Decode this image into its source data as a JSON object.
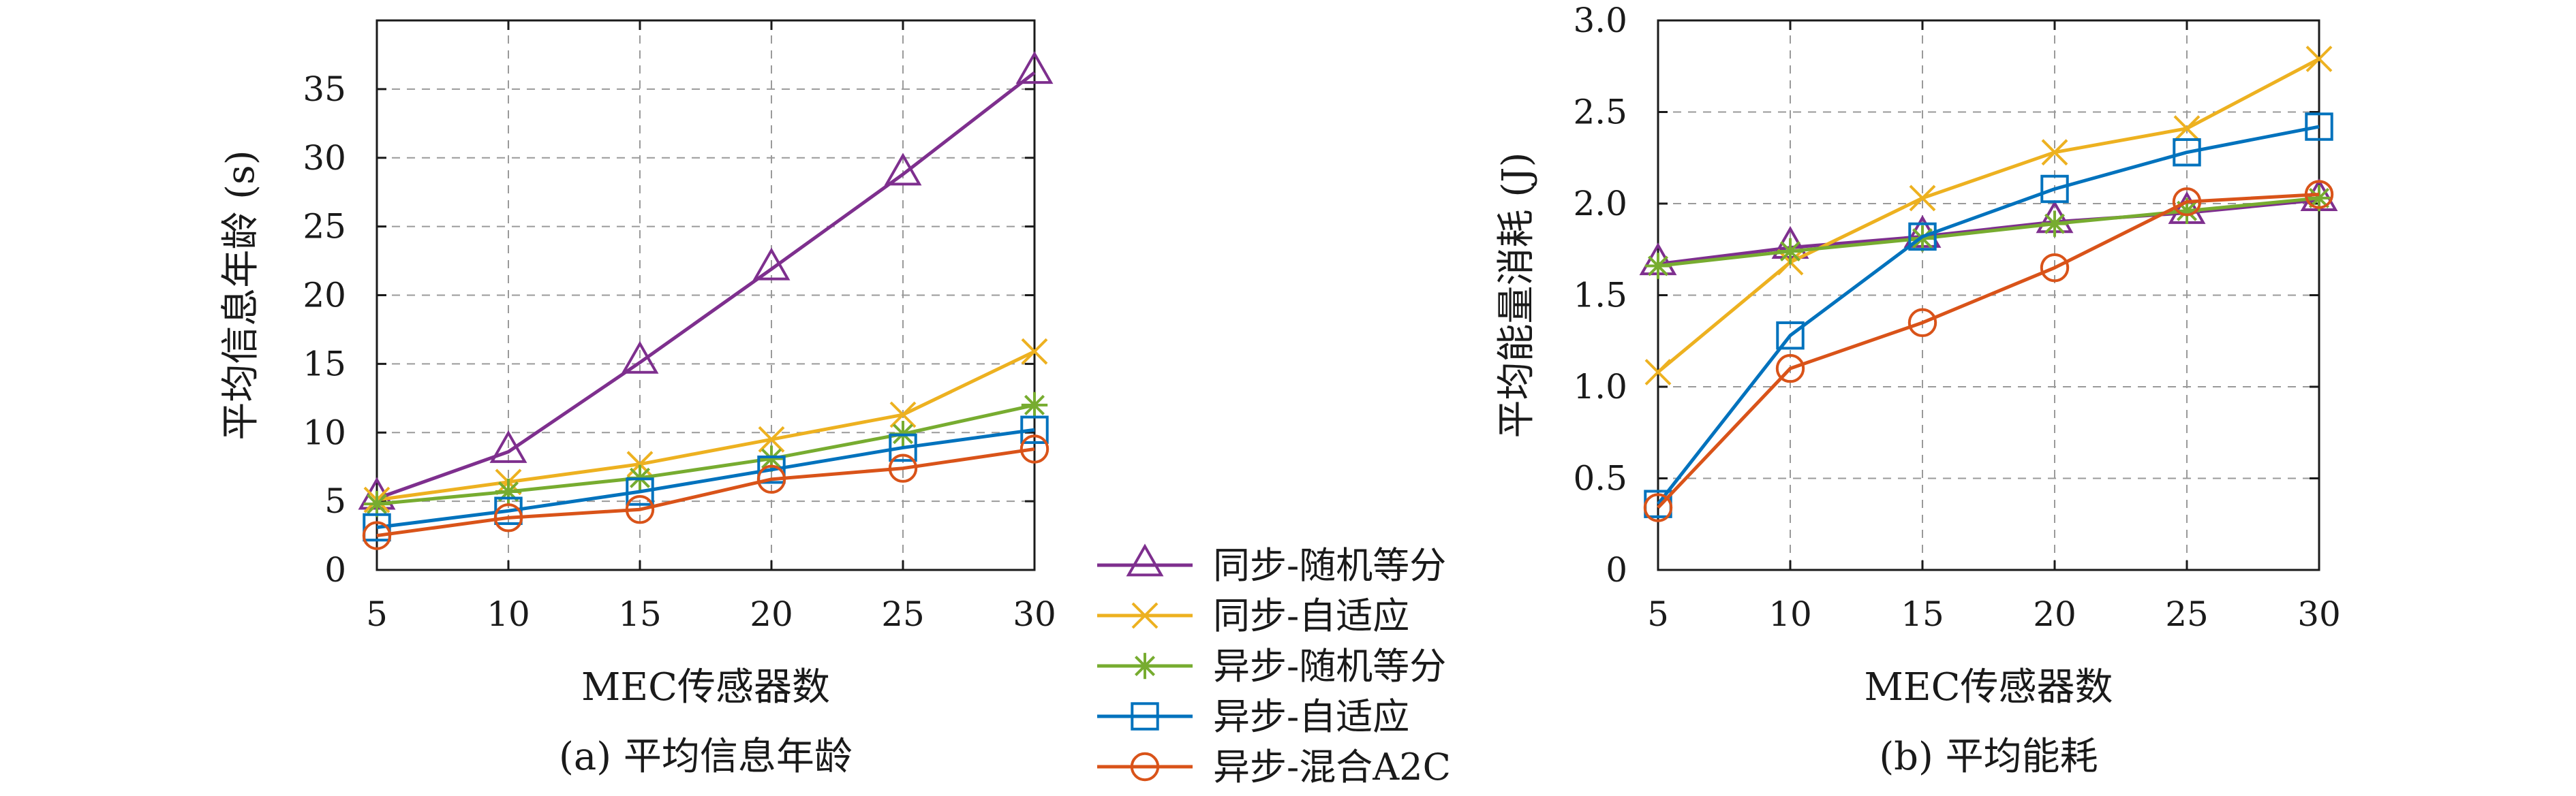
{
  "colors": {
    "sync_random": "#7E2F8E",
    "sync_adaptive": "#EDB120",
    "async_random": "#77AC30",
    "async_adaptive": "#0072BD",
    "async_a2c": "#D95319"
  },
  "legend": {
    "items": [
      {
        "key": "sync_random",
        "label": "同步-随机等分",
        "marker": "triangle-icon"
      },
      {
        "key": "sync_adaptive",
        "label": "同步-自适应",
        "marker": "cross-icon"
      },
      {
        "key": "async_random",
        "label": "异步-随机等分",
        "marker": "asterisk-icon"
      },
      {
        "key": "async_adaptive",
        "label": "异步-自适应",
        "marker": "square-icon"
      },
      {
        "key": "async_a2c",
        "label": "异步-混合A2C",
        "marker": "circle-icon"
      }
    ]
  },
  "chart_data": [
    {
      "type": "line",
      "title": "(a) 平均信息年龄",
      "xlabel": "MEC传感器数",
      "ylabel": "平均信息年龄 (s)",
      "x": [
        5,
        10,
        15,
        20,
        25,
        30
      ],
      "xlim": [
        5,
        30
      ],
      "ylim": [
        0,
        40
      ],
      "xticks": [
        5,
        10,
        15,
        20,
        25,
        30
      ],
      "yticks": [
        0,
        5,
        10,
        15,
        20,
        25,
        30,
        35
      ],
      "grid": true,
      "series": [
        {
          "key": "sync_random",
          "name": "同步-随机等分",
          "values": [
            5.2,
            8.6,
            15.1,
            21.9,
            28.8,
            36.2
          ]
        },
        {
          "key": "sync_adaptive",
          "name": "同步-自适应",
          "values": [
            5.1,
            6.4,
            7.7,
            9.5,
            11.3,
            15.9
          ]
        },
        {
          "key": "async_random",
          "name": "异步-随机等分",
          "values": [
            4.8,
            5.7,
            6.7,
            8.1,
            9.9,
            12.0
          ]
        },
        {
          "key": "async_adaptive",
          "name": "异步-自适应",
          "values": [
            3.1,
            4.3,
            5.7,
            7.3,
            8.9,
            10.2
          ]
        },
        {
          "key": "async_a2c",
          "name": "异步-混合A2C",
          "values": [
            2.5,
            3.8,
            4.4,
            6.6,
            7.4,
            8.8
          ]
        }
      ]
    },
    {
      "type": "line",
      "title": "(b) 平均能耗",
      "xlabel": "MEC传感器数",
      "ylabel": "平均能量消耗 (J)",
      "x": [
        5,
        10,
        15,
        20,
        25,
        30
      ],
      "xlim": [
        5,
        30
      ],
      "ylim": [
        0,
        3
      ],
      "xticks": [
        5,
        10,
        15,
        20,
        25,
        30
      ],
      "yticks": [
        "0",
        "0.5",
        "1.0",
        "1.5",
        "2.0",
        "2.5",
        "3.0"
      ],
      "grid": true,
      "series": [
        {
          "key": "sync_random",
          "name": "同步-随机等分",
          "values": [
            1.67,
            1.76,
            1.82,
            1.9,
            1.95,
            2.02
          ]
        },
        {
          "key": "sync_adaptive",
          "name": "同步-自适应",
          "values": [
            1.08,
            1.68,
            2.03,
            2.28,
            2.41,
            2.79
          ]
        },
        {
          "key": "async_random",
          "name": "异步-随机等分",
          "values": [
            1.66,
            1.74,
            1.81,
            1.89,
            1.96,
            2.03
          ]
        },
        {
          "key": "async_adaptive",
          "name": "异步-自适应",
          "values": [
            0.36,
            1.28,
            1.82,
            2.08,
            2.28,
            2.42
          ]
        },
        {
          "key": "async_a2c",
          "name": "异步-混合A2C",
          "values": [
            0.34,
            1.1,
            1.35,
            1.65,
            2.01,
            2.05
          ]
        }
      ]
    }
  ]
}
